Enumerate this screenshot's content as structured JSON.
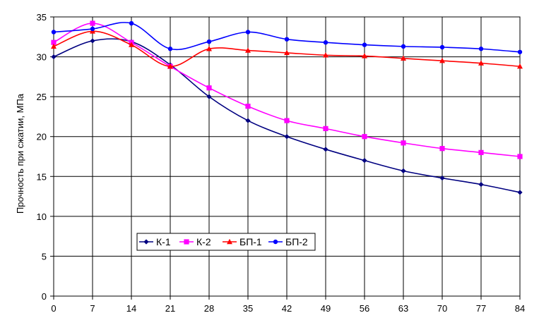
{
  "chart_data": {
    "type": "line",
    "x": [
      0,
      7,
      14,
      21,
      28,
      35,
      42,
      49,
      56,
      63,
      70,
      77,
      84
    ],
    "xticks": [
      "0",
      "7",
      "14",
      "21",
      "28",
      "35",
      "42",
      "49",
      "56",
      "63",
      "70",
      "77",
      "84"
    ],
    "xlim": [
      0,
      84
    ],
    "ylim": [
      0,
      35
    ],
    "yticks": [
      "0",
      "5",
      "10",
      "15",
      "20",
      "25",
      "30",
      "35"
    ],
    "ylabel": "Прочность при сжатии, МПа",
    "xlabel": "",
    "grid": true,
    "legend_position": "bottom-left",
    "series": [
      {
        "name": "К-1",
        "color": "#000080",
        "marker": "diamond",
        "values": [
          30.0,
          32.0,
          31.9,
          29.0,
          25.0,
          22.0,
          20.0,
          18.4,
          17.0,
          15.7,
          14.8,
          14.0,
          13.0
        ]
      },
      {
        "name": "К-2",
        "color": "#ff00ff",
        "marker": "square",
        "values": [
          31.8,
          34.2,
          31.8,
          28.8,
          26.1,
          23.8,
          22.0,
          21.0,
          20.0,
          19.2,
          18.5,
          18.0,
          17.5
        ]
      },
      {
        "name": "БП-1",
        "color": "#ff0000",
        "marker": "triangle",
        "values": [
          31.3,
          33.2,
          31.5,
          28.8,
          31.0,
          30.8,
          30.5,
          30.2,
          30.1,
          29.8,
          29.5,
          29.2,
          28.8
        ]
      },
      {
        "name": "БП-2",
        "color": "#0000ff",
        "marker": "circle",
        "values": [
          33.1,
          33.5,
          34.2,
          31.0,
          31.9,
          33.1,
          32.2,
          31.8,
          31.5,
          31.3,
          31.2,
          31.0,
          30.6
        ]
      }
    ]
  }
}
